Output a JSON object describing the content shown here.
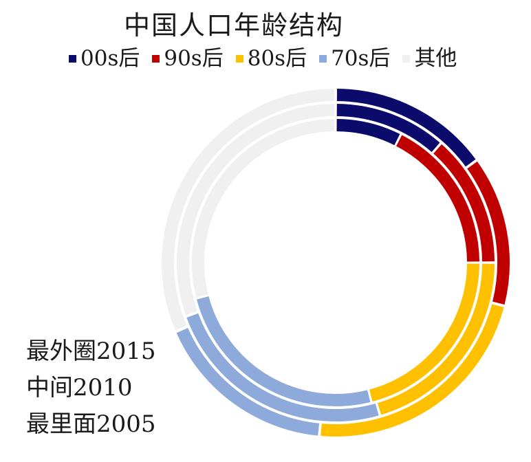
{
  "chart_data": {
    "type": "donut",
    "title": "中国人口年龄结构",
    "categories": [
      "00s后",
      "90s后",
      "80s后",
      "70s后",
      "其他"
    ],
    "colors": [
      "#0b0b6b",
      "#c00000",
      "#ffc000",
      "#8eaadb",
      "#f0f0f0"
    ],
    "series": [
      {
        "name": "最里面2005",
        "values": [
          7.5,
          17.5,
          21.0,
          25.0,
          29.0
        ]
      },
      {
        "name": "中间2010",
        "values": [
          11.5,
          13.5,
          20.5,
          24.0,
          30.5
        ]
      },
      {
        "name": "最外圈2015",
        "values": [
          15.0,
          14.0,
          22.5,
          17.0,
          31.5
        ]
      }
    ],
    "legend_position": "top"
  },
  "notes": {
    "outer": "最外圈2015",
    "middle": "中间2010",
    "inner": "最里面2005"
  }
}
